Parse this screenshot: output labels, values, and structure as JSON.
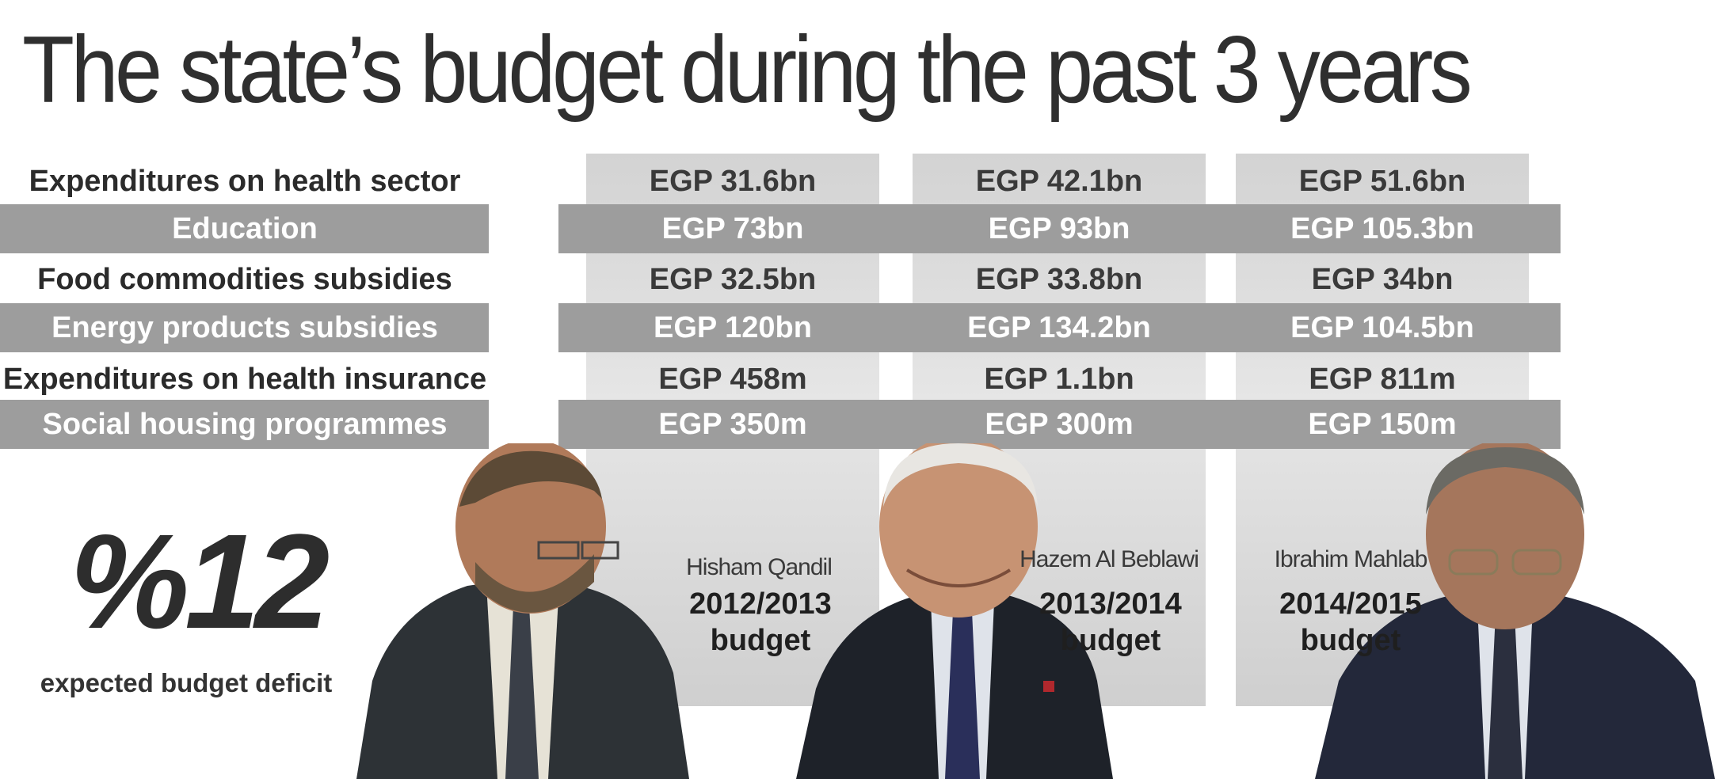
{
  "title": "The state’s budget during the past 3 years",
  "rows": [
    {
      "label": "Expenditures on health sector",
      "values": [
        "EGP 31.6bn",
        "EGP 42.1bn",
        "EGP 51.6bn"
      ]
    },
    {
      "label": "Education",
      "values": [
        "EGP 73bn",
        "EGP 93bn",
        "EGP 105.3bn"
      ]
    },
    {
      "label": "Food commodities subsidies",
      "values": [
        "EGP 32.5bn",
        "EGP 33.8bn",
        "EGP 34bn"
      ]
    },
    {
      "label": "Energy products subsidies",
      "values": [
        "EGP 120bn",
        "EGP 134.2bn",
        "EGP 104.5bn"
      ]
    },
    {
      "label": "Expenditures on health insurance",
      "values": [
        "EGP 458m",
        "EGP 1.1bn",
        "EGP 811m"
      ]
    },
    {
      "label": "Social housing programmes",
      "values": [
        "EGP 350m",
        "EGP 300m",
        "EGP 150m"
      ]
    }
  ],
  "deficit": {
    "value": "%12",
    "label": "expected budget deficit"
  },
  "prime_ministers": [
    {
      "name": "Hisham Qandil",
      "year": "2012/2013",
      "budget_label": "budget"
    },
    {
      "name": "Hazem Al Beblawi",
      "year": "2013/2014",
      "budget_label": "budget"
    },
    {
      "name": "Ibrahim Mahlab",
      "year": "2014/2015",
      "budget_label": "budget"
    }
  ],
  "colors": {
    "band": "#9d9d9d",
    "column": "#d8d8d8",
    "text": "#2b2b2b"
  }
}
